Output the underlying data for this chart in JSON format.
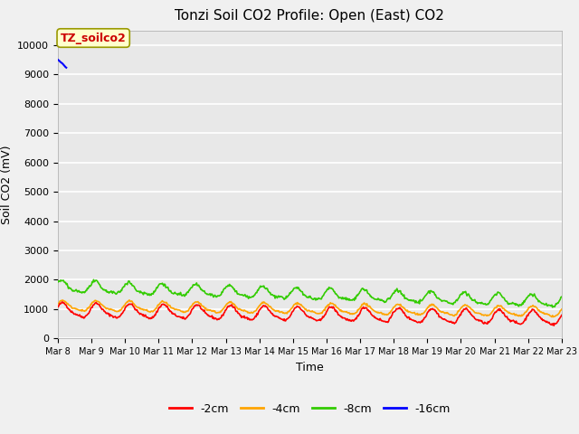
{
  "title": "Tonzi Soil CO2 Profile: Open (East) CO2",
  "xlabel": "Time",
  "ylabel": "Soil CO2 (mV)",
  "ylim": [
    0,
    10500
  ],
  "yticks": [
    0,
    1000,
    2000,
    3000,
    4000,
    5000,
    6000,
    7000,
    8000,
    9000,
    10000
  ],
  "fig_bg_color": "#f0f0f0",
  "plot_bg_color": "#e8e8e8",
  "line_colors": {
    "-2cm": "#ff0000",
    "-4cm": "#ffa500",
    "-8cm": "#33cc00",
    "-16cm": "#0000ff"
  },
  "legend_labels": [
    "-2cm",
    "-4cm",
    "-8cm",
    "-16cm"
  ],
  "annotation_label": "TZ_soilco2",
  "annotation_color": "#cc0000",
  "annotation_bg": "#ffffcc",
  "n_days": 15,
  "start_day": 8,
  "points_per_day": 48,
  "seed": 42
}
